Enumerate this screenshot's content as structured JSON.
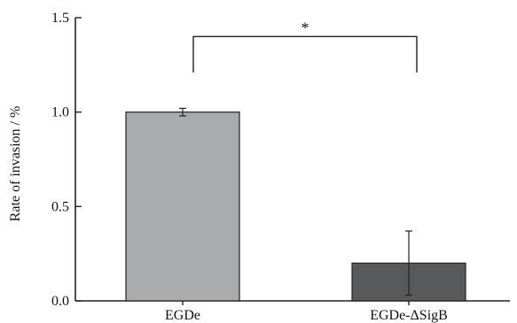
{
  "chart_data": {
    "type": "bar",
    "categories": [
      "EGDe",
      "EGDe-ΔSigB"
    ],
    "values": [
      1.0,
      0.2
    ],
    "errors": [
      0.02,
      0.17
    ],
    "ylabel": "Rate of invasion  / %",
    "xlabel": "",
    "ylim": [
      0,
      1.5
    ],
    "yticks": [
      0.0,
      0.5,
      1.0,
      1.5
    ],
    "ytick_labels": [
      "0.0",
      "0.5",
      "1.0",
      "1.5"
    ],
    "bar_colors": [
      "#a9abad",
      "#58595b"
    ],
    "grid": false,
    "annotations": [
      {
        "type": "significance",
        "label": "*",
        "between": [
          "EGDe",
          "EGDe-ΔSigB"
        ]
      }
    ]
  }
}
